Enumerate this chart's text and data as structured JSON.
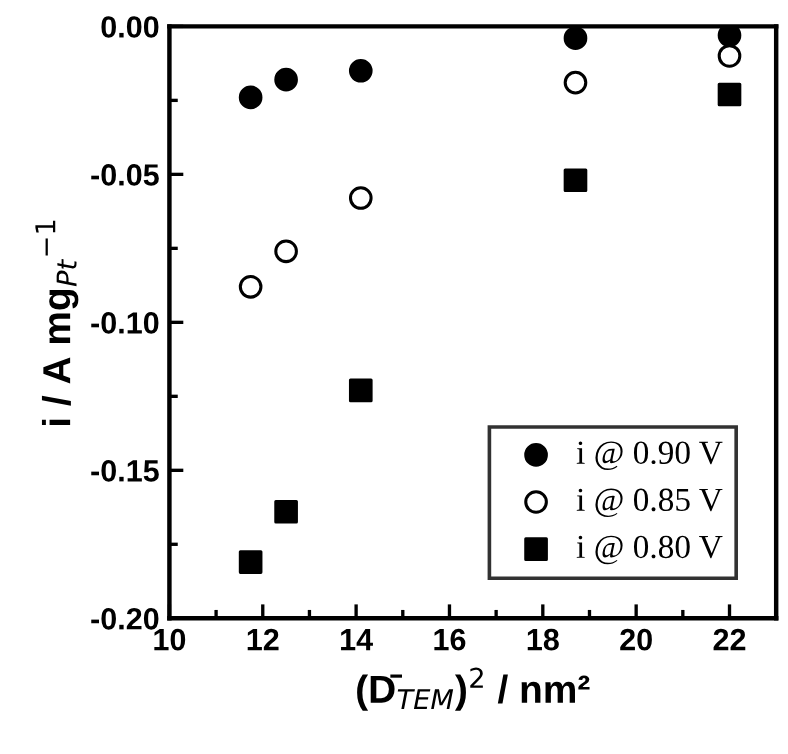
{
  "chart_data": {
    "type": "scatter",
    "xlabel": "(D̄$_{TEM}$)$^{2}$ / nm²",
    "ylabel": "i / A mg$_{Pt}$$^{−1}$",
    "x": [
      11.74,
      12.5,
      14.1,
      18.7,
      22.0
    ],
    "series": [
      {
        "name": "i @ 0.90 V",
        "color": "#000000",
        "marker": "circle",
        "values": [
          -0.024,
          -0.018,
          -0.015,
          -0.004,
          -0.003
        ]
      },
      {
        "name": "i @ 0.85 V",
        "color": "#ffffff",
        "marker": "circle",
        "values": [
          -0.088,
          -0.076,
          -0.058,
          -0.019,
          -0.01
        ]
      },
      {
        "name": "i @ 0.80 V",
        "color": "#000000",
        "marker": "square",
        "values": [
          -0.181,
          -0.164,
          -0.123,
          -0.052,
          -0.023
        ]
      }
    ],
    "xlim": [
      10,
      23
    ],
    "xticks": [
      10,
      12,
      14,
      16,
      18,
      20,
      22
    ],
    "ylim": [
      -0.2,
      0.0
    ],
    "yticks": [
      {
        "value": -0.2,
        "label": "-0.20"
      },
      {
        "value": -0.15,
        "label": "-0.15"
      },
      {
        "value": -0.1,
        "label": "-0.10"
      },
      {
        "value": -0.05,
        "label": "-0.05"
      },
      {
        "value": 0.0,
        "label": "0.00"
      }
    ],
    "legend": "bottom right",
    "grid": false
  }
}
